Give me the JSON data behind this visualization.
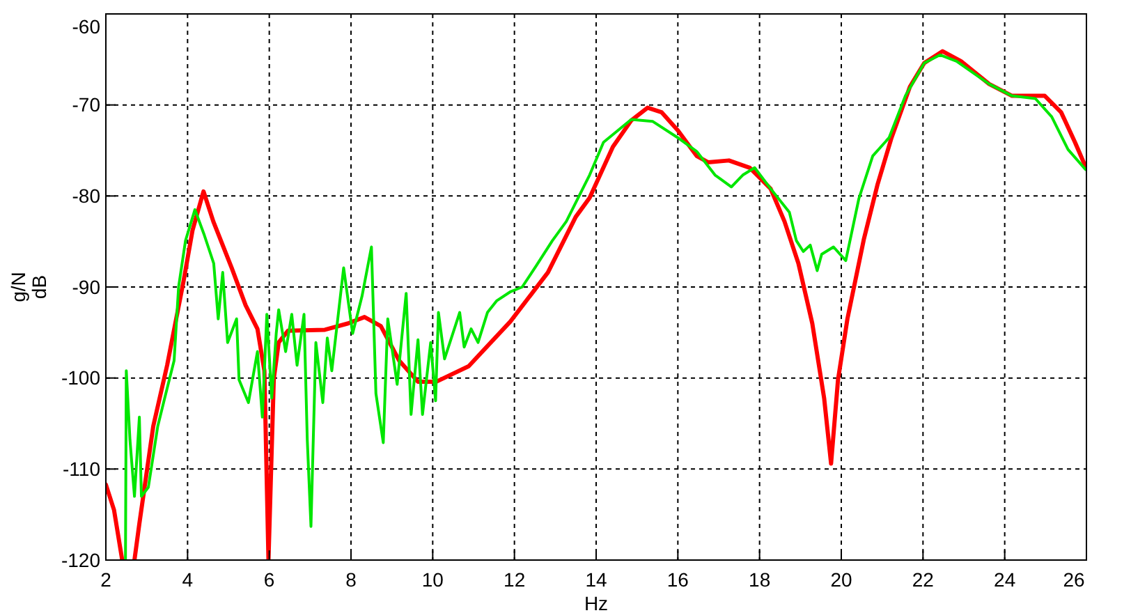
{
  "chart_data": {
    "type": "line",
    "xlabel": "Hz",
    "ylabel": "g/N\ndB",
    "xlim": [
      2,
      26
    ],
    "ylim": [
      -120,
      -60
    ],
    "xticks": [
      2,
      4,
      6,
      8,
      10,
      12,
      14,
      16,
      18,
      20,
      22,
      24,
      26
    ],
    "yticks": [
      -120,
      -110,
      -100,
      -90,
      -80,
      -70,
      -60
    ],
    "grid": true,
    "line_style": "solid",
    "marker": "none",
    "series": [
      {
        "color": "#ff0000",
        "x": [
          2,
          2.2,
          2.4,
          2.55,
          2.7,
          2.82,
          3.16,
          3.5,
          3.9,
          4.12,
          4.39,
          4.63,
          5.08,
          5.42,
          5.71,
          5.88,
          5.98,
          6.11,
          6.23,
          6.46,
          7.36,
          7.93,
          8.33,
          8.73,
          9.18,
          9.64,
          10.09,
          10.88,
          11.9,
          12.82,
          13.5,
          13.84,
          14.41,
          14.86,
          15.26,
          15.6,
          16.0,
          16.46,
          16.74,
          17.25,
          17.76,
          18.27,
          18.61,
          18.95,
          19.29,
          19.58,
          19.75,
          19.92,
          20.15,
          20.55,
          20.89,
          21.23,
          21.68,
          22.03,
          22.48,
          22.93,
          23.62,
          24.18,
          24.98,
          25.38,
          25.72,
          25.98
        ],
        "values": [
          -111.7,
          -114.5,
          -120,
          null,
          -120,
          -116.0,
          -105.3,
          -98.6,
          -89.4,
          -83.8,
          -79.5,
          -82.8,
          -87.9,
          -92.0,
          -94.6,
          -99.2,
          -120,
          -100.1,
          -96.1,
          -94.8,
          -94.7,
          -94.0,
          -93.3,
          -94.3,
          -98.1,
          -100.4,
          -100.4,
          -98.7,
          -93.8,
          -88.4,
          -82.3,
          -80.2,
          -74.6,
          -71.7,
          -70.3,
          -70.8,
          -72.8,
          -75.6,
          -76.3,
          -76.1,
          -76.9,
          -79.2,
          -82.8,
          -87.4,
          -94.0,
          -102.2,
          -109.4,
          -100.2,
          -93.5,
          -84.8,
          -78.7,
          -73.6,
          -68.0,
          -65.4,
          -64.1,
          -65.2,
          -67.7,
          -69.0,
          -69.0,
          -70.8,
          -74.1,
          -76.8
        ]
      },
      {
        "color": "#00e600",
        "x": [
          2.48,
          2.5,
          2.59,
          2.7,
          2.82,
          2.87,
          3.04,
          3.27,
          3.44,
          3.67,
          3.78,
          3.95,
          4.18,
          4.41,
          4.64,
          4.75,
          4.86,
          4.98,
          5.2,
          5.26,
          5.49,
          5.71,
          5.83,
          5.94,
          6.06,
          6.17,
          6.23,
          6.4,
          6.55,
          6.68,
          6.85,
          6.93,
          7.02,
          7.14,
          7.31,
          7.42,
          7.53,
          7.82,
          8.04,
          8.27,
          8.5,
          8.61,
          8.79,
          8.9,
          9.13,
          9.35,
          9.47,
          9.64,
          9.75,
          9.95,
          10.07,
          10.14,
          10.29,
          10.66,
          10.77,
          10.94,
          11.11,
          11.34,
          11.57,
          11.91,
          12.19,
          12.53,
          12.93,
          13.27,
          13.84,
          14.18,
          14.86,
          15.38,
          16.0,
          16.46,
          16.91,
          17.31,
          17.59,
          17.88,
          18.27,
          18.73,
          18.9,
          19.07,
          19.24,
          19.41,
          19.52,
          19.81,
          20.11,
          20.43,
          20.77,
          21.17,
          21.57,
          22.03,
          22.42,
          22.82,
          23.62,
          24.18,
          24.75,
          25.15,
          25.55,
          25.98
        ],
        "values": [
          -120,
          -99.2,
          -106.8,
          -113.0,
          -104.3,
          -113.0,
          -112.0,
          -105.3,
          -102.2,
          -98.1,
          -90.0,
          -84.9,
          -81.5,
          -84.3,
          -87.4,
          -93.5,
          -88.4,
          -96.1,
          -93.5,
          -100.2,
          -102.7,
          -97.1,
          -104.3,
          -93.0,
          -102.2,
          -95.1,
          -92.5,
          -97.1,
          -93.0,
          -98.6,
          -93.0,
          -106.8,
          -116.3,
          -96.1,
          -102.7,
          -95.6,
          -99.2,
          -87.9,
          -95.1,
          -91.0,
          -85.6,
          -101.7,
          -107.1,
          -93.5,
          -100.7,
          -90.7,
          -104.0,
          -95.8,
          -104.0,
          -96.1,
          -102.5,
          -92.8,
          -97.9,
          -92.8,
          -96.6,
          -94.6,
          -96.1,
          -92.8,
          -91.5,
          -90.5,
          -90.0,
          -87.7,
          -84.9,
          -82.8,
          -77.7,
          -74.1,
          -71.6,
          -71.8,
          -73.6,
          -75.1,
          -77.7,
          -79.0,
          -77.7,
          -76.9,
          -79.2,
          -81.8,
          -84.9,
          -86.1,
          -85.4,
          -88.2,
          -86.4,
          -85.6,
          -87.1,
          -80.3,
          -75.6,
          -73.6,
          -69.0,
          -65.4,
          -64.5,
          -65.2,
          -67.7,
          -69.0,
          -69.3,
          -71.3,
          -74.9,
          -77.1
        ]
      }
    ]
  }
}
